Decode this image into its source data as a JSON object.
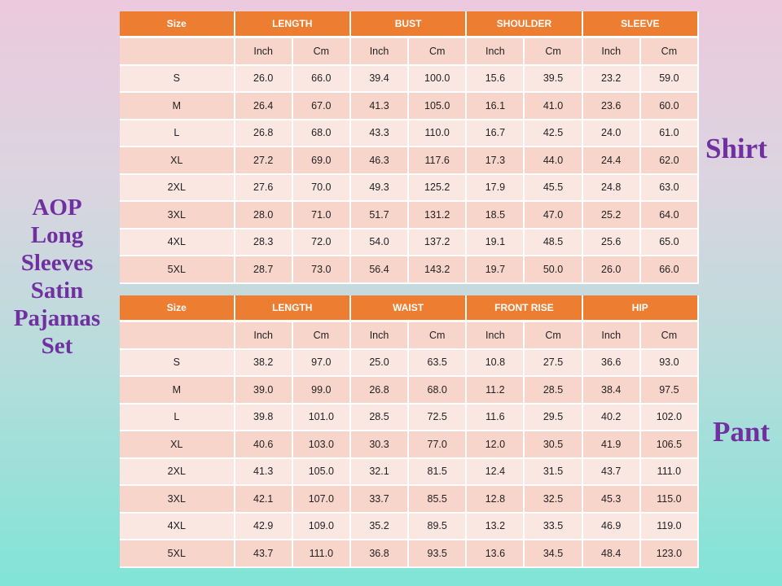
{
  "title_lines": [
    "AOP",
    "Long",
    "Sleeves",
    "Satin",
    "Pajamas",
    "Set"
  ],
  "colors": {
    "header": "#ed7d31",
    "label": "#7030a0",
    "row_light": "#fbe7e1",
    "row_dark": "#f8d5ca"
  },
  "shirt": {
    "label": "Shirt",
    "size_header": "Size",
    "groups": [
      "LENGTH",
      "BUST",
      "SHOULDER",
      "SLEEVE"
    ],
    "units": [
      "Inch",
      "Cm",
      "Inch",
      "Cm",
      "Inch",
      "Cm",
      "Inch",
      "Cm"
    ],
    "rows": [
      [
        "S",
        "26.0",
        "66.0",
        "39.4",
        "100.0",
        "15.6",
        "39.5",
        "23.2",
        "59.0"
      ],
      [
        "M",
        "26.4",
        "67.0",
        "41.3",
        "105.0",
        "16.1",
        "41.0",
        "23.6",
        "60.0"
      ],
      [
        "L",
        "26.8",
        "68.0",
        "43.3",
        "110.0",
        "16.7",
        "42.5",
        "24.0",
        "61.0"
      ],
      [
        "XL",
        "27.2",
        "69.0",
        "46.3",
        "117.6",
        "17.3",
        "44.0",
        "24.4",
        "62.0"
      ],
      [
        "2XL",
        "27.6",
        "70.0",
        "49.3",
        "125.2",
        "17.9",
        "45.5",
        "24.8",
        "63.0"
      ],
      [
        "3XL",
        "28.0",
        "71.0",
        "51.7",
        "131.2",
        "18.5",
        "47.0",
        "25.2",
        "64.0"
      ],
      [
        "4XL",
        "28.3",
        "72.0",
        "54.0",
        "137.2",
        "19.1",
        "48.5",
        "25.6",
        "65.0"
      ],
      [
        "5XL",
        "28.7",
        "73.0",
        "56.4",
        "143.2",
        "19.7",
        "50.0",
        "26.0",
        "66.0"
      ]
    ]
  },
  "pant": {
    "label": "Pant",
    "size_header": "Size",
    "groups": [
      "LENGTH",
      "WAIST",
      "FRONT RISE",
      "HIP"
    ],
    "units": [
      "Inch",
      "Cm",
      "Inch",
      "Cm",
      "Inch",
      "Cm",
      "Inch",
      "Cm"
    ],
    "rows": [
      [
        "S",
        "38.2",
        "97.0",
        "25.0",
        "63.5",
        "10.8",
        "27.5",
        "36.6",
        "93.0"
      ],
      [
        "M",
        "39.0",
        "99.0",
        "26.8",
        "68.0",
        "11.2",
        "28.5",
        "38.4",
        "97.5"
      ],
      [
        "L",
        "39.8",
        "101.0",
        "28.5",
        "72.5",
        "11.6",
        "29.5",
        "40.2",
        "102.0"
      ],
      [
        "XL",
        "40.6",
        "103.0",
        "30.3",
        "77.0",
        "12.0",
        "30.5",
        "41.9",
        "106.5"
      ],
      [
        "2XL",
        "41.3",
        "105.0",
        "32.1",
        "81.5",
        "12.4",
        "31.5",
        "43.7",
        "111.0"
      ],
      [
        "3XL",
        "42.1",
        "107.0",
        "33.7",
        "85.5",
        "12.8",
        "32.5",
        "45.3",
        "115.0"
      ],
      [
        "4XL",
        "42.9",
        "109.0",
        "35.2",
        "89.5",
        "13.2",
        "33.5",
        "46.9",
        "119.0"
      ],
      [
        "5XL",
        "43.7",
        "111.0",
        "36.8",
        "93.5",
        "13.6",
        "34.5",
        "48.4",
        "123.0"
      ]
    ]
  }
}
